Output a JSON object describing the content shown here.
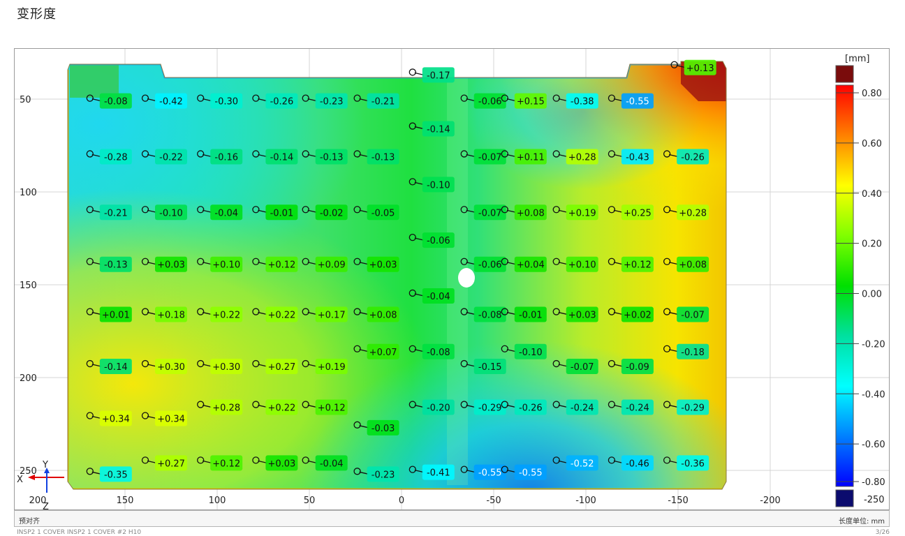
{
  "page": {
    "title": "变形度",
    "footer_left": "预对齐",
    "footer_right": "长度单位: mm",
    "bottom_cut_left": "INSP2 1 COVER INSP2 1 COVER #2 H10",
    "bottom_cut_right": "3/26"
  },
  "chart_data": {
    "type": "heatmap",
    "title": "变形度",
    "unit": "[mm]",
    "x_ticks": [
      150,
      100,
      50,
      0,
      -50,
      -100,
      -150,
      -200
    ],
    "y_ticks": [
      50,
      100,
      150,
      200,
      250
    ],
    "x_range": [
      200,
      -240
    ],
    "y_range": [
      25,
      260
    ],
    "colorbar": {
      "unit_label": "[mm]",
      "ticks": [
        "0.80",
        "0.60",
        "0.40",
        "0.20",
        "0.00",
        "-0.20",
        "-0.40",
        "-0.60",
        "-0.80"
      ],
      "over_label": "",
      "under_label": "-250",
      "over_color": "#7a0c0c",
      "under_color": "#0b0b6e"
    },
    "axis_triad": {
      "x_label": "X",
      "y_label": "Y",
      "z_label": "Z"
    },
    "annotations": [
      {
        "x": 155,
        "y": 51,
        "value": "-0.08"
      },
      {
        "x": 125,
        "y": 51,
        "value": "-0.42"
      },
      {
        "x": 95,
        "y": 51,
        "value": "-0.30"
      },
      {
        "x": 65,
        "y": 51,
        "value": "-0.26"
      },
      {
        "x": 38,
        "y": 51,
        "value": "-0.23"
      },
      {
        "x": 10,
        "y": 51,
        "value": "-0.21"
      },
      {
        "x": -20,
        "y": 37,
        "value": "-0.17"
      },
      {
        "x": -48,
        "y": 51,
        "value": "-0.06"
      },
      {
        "x": -70,
        "y": 51,
        "value": "+0.15"
      },
      {
        "x": -98,
        "y": 51,
        "value": "-0.38"
      },
      {
        "x": -128,
        "y": 51,
        "value": "-0.55"
      },
      {
        "x": -162,
        "y": 33,
        "value": "+0.13"
      },
      {
        "x": 155,
        "y": 81,
        "value": "-0.28"
      },
      {
        "x": 125,
        "y": 81,
        "value": "-0.22"
      },
      {
        "x": 95,
        "y": 81,
        "value": "-0.16"
      },
      {
        "x": 65,
        "y": 81,
        "value": "-0.14"
      },
      {
        "x": 38,
        "y": 81,
        "value": "-0.13"
      },
      {
        "x": 10,
        "y": 81,
        "value": "-0.13"
      },
      {
        "x": -20,
        "y": 66,
        "value": "-0.14"
      },
      {
        "x": -48,
        "y": 81,
        "value": "-0.07"
      },
      {
        "x": -70,
        "y": 81,
        "value": "+0.11"
      },
      {
        "x": -98,
        "y": 81,
        "value": "+0.28"
      },
      {
        "x": -128,
        "y": 81,
        "value": "-0.43"
      },
      {
        "x": -158,
        "y": 81,
        "value": "-0.26"
      },
      {
        "x": 155,
        "y": 111,
        "value": "-0.21"
      },
      {
        "x": 125,
        "y": 111,
        "value": "-0.10"
      },
      {
        "x": 95,
        "y": 111,
        "value": "-0.04"
      },
      {
        "x": 65,
        "y": 111,
        "value": "-0.01"
      },
      {
        "x": 38,
        "y": 111,
        "value": "-0.02"
      },
      {
        "x": 10,
        "y": 111,
        "value": "-0.05"
      },
      {
        "x": -20,
        "y": 96,
        "value": "-0.10"
      },
      {
        "x": -48,
        "y": 111,
        "value": "-0.07"
      },
      {
        "x": -70,
        "y": 111,
        "value": "+0.08"
      },
      {
        "x": -98,
        "y": 111,
        "value": "+0.19"
      },
      {
        "x": -128,
        "y": 111,
        "value": "+0.25"
      },
      {
        "x": -158,
        "y": 111,
        "value": "+0.28"
      },
      {
        "x": 155,
        "y": 139,
        "value": "-0.13"
      },
      {
        "x": 125,
        "y": 139,
        "value": "+0.03"
      },
      {
        "x": 95,
        "y": 139,
        "value": "+0.10"
      },
      {
        "x": 65,
        "y": 139,
        "value": "+0.12"
      },
      {
        "x": 38,
        "y": 139,
        "value": "+0.09"
      },
      {
        "x": 10,
        "y": 139,
        "value": "+0.03"
      },
      {
        "x": -20,
        "y": 126,
        "value": "-0.06"
      },
      {
        "x": -48,
        "y": 139,
        "value": "-0.06"
      },
      {
        "x": -70,
        "y": 139,
        "value": "+0.04"
      },
      {
        "x": -98,
        "y": 139,
        "value": "+0.10"
      },
      {
        "x": -128,
        "y": 139,
        "value": "+0.12"
      },
      {
        "x": -158,
        "y": 139,
        "value": "+0.08"
      },
      {
        "x": 155,
        "y": 166,
        "value": "+0.01"
      },
      {
        "x": 125,
        "y": 166,
        "value": "+0.18"
      },
      {
        "x": 95,
        "y": 166,
        "value": "+0.22"
      },
      {
        "x": 65,
        "y": 166,
        "value": "+0.22"
      },
      {
        "x": 38,
        "y": 166,
        "value": "+0.17"
      },
      {
        "x": 10,
        "y": 166,
        "value": "+0.08"
      },
      {
        "x": -20,
        "y": 156,
        "value": "-0.04"
      },
      {
        "x": -48,
        "y": 166,
        "value": "-0.08"
      },
      {
        "x": -70,
        "y": 166,
        "value": "-0.01"
      },
      {
        "x": -98,
        "y": 166,
        "value": "+0.03"
      },
      {
        "x": -128,
        "y": 166,
        "value": "+0.02"
      },
      {
        "x": -158,
        "y": 166,
        "value": "-0.07"
      },
      {
        "x": 155,
        "y": 194,
        "value": "-0.14"
      },
      {
        "x": 125,
        "y": 194,
        "value": "+0.30"
      },
      {
        "x": 95,
        "y": 194,
        "value": "+0.30"
      },
      {
        "x": 65,
        "y": 194,
        "value": "+0.27"
      },
      {
        "x": 38,
        "y": 194,
        "value": "+0.19"
      },
      {
        "x": 10,
        "y": 186,
        "value": "+0.07"
      },
      {
        "x": -20,
        "y": 186,
        "value": "-0.08"
      },
      {
        "x": -48,
        "y": 194,
        "value": "-0.15"
      },
      {
        "x": -70,
        "y": 186,
        "value": "-0.10"
      },
      {
        "x": -98,
        "y": 194,
        "value": "-0.07"
      },
      {
        "x": -128,
        "y": 194,
        "value": "-0.09"
      },
      {
        "x": -158,
        "y": 186,
        "value": "-0.18"
      },
      {
        "x": 155,
        "y": 222,
        "value": "+0.34"
      },
      {
        "x": 125,
        "y": 222,
        "value": "+0.34"
      },
      {
        "x": 95,
        "y": 216,
        "value": "+0.28"
      },
      {
        "x": 65,
        "y": 216,
        "value": "+0.22"
      },
      {
        "x": 38,
        "y": 216,
        "value": "+0.12"
      },
      {
        "x": 10,
        "y": 227,
        "value": "-0.03"
      },
      {
        "x": -20,
        "y": 216,
        "value": "-0.20"
      },
      {
        "x": -48,
        "y": 216,
        "value": "-0.29"
      },
      {
        "x": -70,
        "y": 216,
        "value": "-0.26"
      },
      {
        "x": -98,
        "y": 216,
        "value": "-0.24"
      },
      {
        "x": -128,
        "y": 216,
        "value": "-0.24"
      },
      {
        "x": -158,
        "y": 216,
        "value": "-0.29"
      },
      {
        "x": 155,
        "y": 252,
        "value": "-0.35"
      },
      {
        "x": 125,
        "y": 246,
        "value": "+0.27"
      },
      {
        "x": 95,
        "y": 246,
        "value": "+0.12"
      },
      {
        "x": 65,
        "y": 246,
        "value": "+0.03"
      },
      {
        "x": 38,
        "y": 246,
        "value": "-0.04"
      },
      {
        "x": 10,
        "y": 252,
        "value": "-0.23"
      },
      {
        "x": -20,
        "y": 251,
        "value": "-0.41"
      },
      {
        "x": -48,
        "y": 251,
        "value": "-0.55"
      },
      {
        "x": -70,
        "y": 251,
        "value": "-0.55"
      },
      {
        "x": -98,
        "y": 246,
        "value": "-0.52"
      },
      {
        "x": -128,
        "y": 246,
        "value": "-0.46"
      },
      {
        "x": -158,
        "y": 246,
        "value": "-0.36"
      }
    ]
  }
}
